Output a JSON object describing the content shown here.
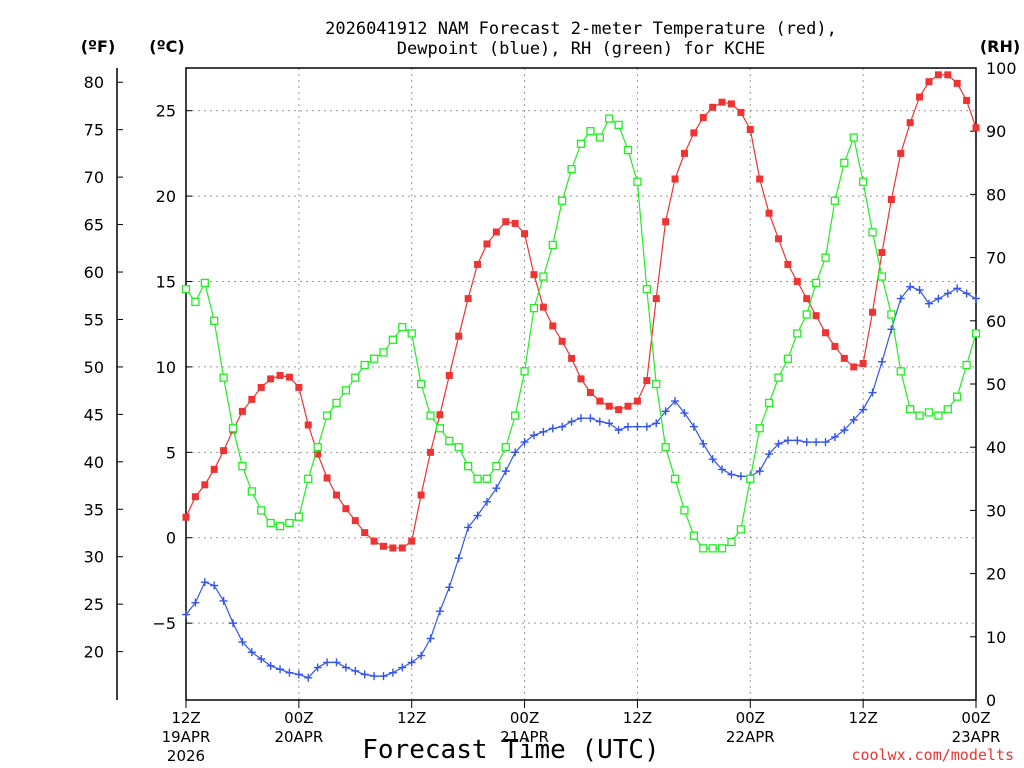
{
  "chart_data": {
    "type": "line",
    "title_line1": "2026041912 NAM Forecast 2-meter Temperature (red),",
    "title_line2": "Dewpoint (blue), RH (green) for KCHE",
    "xlabel": "Forecast Time (UTC)",
    "credit": "coolwx.com/modelts",
    "unit_f": "(ºF)",
    "unit_c": "(ºC)",
    "unit_rh": "(RH)",
    "x_range_hours": [
      0,
      84
    ],
    "c_range": [
      -9.5,
      27.5
    ],
    "f_ticks": [
      20,
      25,
      30,
      35,
      40,
      45,
      50,
      55,
      60,
      65,
      70,
      75,
      80
    ],
    "c_ticks": [
      -5,
      0,
      5,
      10,
      15,
      20,
      25
    ],
    "rh_range": [
      0,
      100
    ],
    "rh_ticks": [
      0,
      10,
      20,
      30,
      40,
      50,
      60,
      70,
      80,
      90,
      100
    ],
    "grid": true,
    "x_ticks": [
      {
        "hour": 0,
        "label1": "12Z",
        "label2": "19APR",
        "label3": "2026"
      },
      {
        "hour": 12,
        "label1": "00Z",
        "label2": "20APR",
        "label3": ""
      },
      {
        "hour": 24,
        "label1": "12Z",
        "label2": "",
        "label3": ""
      },
      {
        "hour": 36,
        "label1": "00Z",
        "label2": "21APR",
        "label3": ""
      },
      {
        "hour": 48,
        "label1": "12Z",
        "label2": "",
        "label3": ""
      },
      {
        "hour": 60,
        "label1": "00Z",
        "label2": "22APR",
        "label3": ""
      },
      {
        "hour": 72,
        "label1": "12Z",
        "label2": "",
        "label3": ""
      },
      {
        "hour": 84,
        "label1": "00Z",
        "label2": "23APR",
        "label3": ""
      }
    ],
    "series": [
      {
        "name": "Temperature (°C)",
        "color": "#ee3333",
        "axis": "c",
        "marker": "filled-square",
        "x": [
          0,
          1,
          2,
          3,
          4,
          5,
          6,
          7,
          8,
          9,
          10,
          11,
          12,
          13,
          14,
          15,
          16,
          17,
          18,
          19,
          20,
          21,
          22,
          23,
          24,
          25,
          26,
          27,
          28,
          29,
          30,
          31,
          32,
          33,
          34,
          35,
          36,
          37,
          38,
          39,
          40,
          41,
          42,
          43,
          44,
          45,
          46,
          47,
          48,
          49,
          50,
          51,
          52,
          53,
          54,
          55,
          56,
          57,
          58,
          59,
          60,
          61,
          62,
          63,
          64,
          65,
          66,
          67,
          68,
          69,
          70,
          71,
          72,
          73,
          74,
          75,
          76,
          77,
          78,
          79,
          80,
          81,
          82,
          83,
          84
        ],
        "values": [
          1.2,
          2.4,
          3.1,
          4.0,
          5.1,
          6.3,
          7.4,
          8.1,
          8.8,
          9.3,
          9.5,
          9.4,
          8.8,
          6.6,
          4.9,
          3.5,
          2.5,
          1.7,
          1.0,
          0.3,
          -0.2,
          -0.5,
          -0.6,
          -0.6,
          -0.2,
          2.5,
          5.0,
          7.2,
          9.5,
          11.8,
          14.0,
          16.0,
          17.2,
          17.9,
          18.5,
          18.4,
          17.8,
          15.4,
          13.5,
          12.4,
          11.5,
          10.5,
          9.3,
          8.5,
          8.0,
          7.7,
          7.5,
          7.7,
          8.0,
          9.2,
          14.0,
          18.5,
          21.0,
          22.5,
          23.7,
          24.6,
          25.2,
          25.5,
          25.4,
          24.9,
          23.9,
          21.0,
          19.0,
          17.5,
          16.0,
          15.0,
          14.0,
          13.0,
          12.0,
          11.2,
          10.5,
          10.0,
          10.2,
          13.2,
          16.7,
          19.8,
          22.5,
          24.3,
          25.8,
          26.7,
          27.1,
          27.1,
          26.6,
          25.6,
          24.0
        ]
      },
      {
        "name": "Dewpoint (°C)",
        "color": "#3355ee",
        "axis": "c",
        "marker": "plus",
        "x": [
          0,
          1,
          2,
          3,
          4,
          5,
          6,
          7,
          8,
          9,
          10,
          11,
          12,
          13,
          14,
          15,
          16,
          17,
          18,
          19,
          20,
          21,
          22,
          23,
          24,
          25,
          26,
          27,
          28,
          29,
          30,
          31,
          32,
          33,
          34,
          35,
          36,
          37,
          38,
          39,
          40,
          41,
          42,
          43,
          44,
          45,
          46,
          47,
          48,
          49,
          50,
          51,
          52,
          53,
          54,
          55,
          56,
          57,
          58,
          59,
          60,
          61,
          62,
          63,
          64,
          65,
          66,
          67,
          68,
          69,
          70,
          71,
          72,
          73,
          74,
          75,
          76,
          77,
          78,
          79,
          80,
          81,
          82,
          83,
          84
        ],
        "values": [
          -4.5,
          -3.8,
          -2.6,
          -2.8,
          -3.7,
          -5.0,
          -6.1,
          -6.7,
          -7.1,
          -7.5,
          -7.7,
          -7.9,
          -8.0,
          -8.2,
          -7.6,
          -7.3,
          -7.3,
          -7.6,
          -7.8,
          -8.0,
          -8.1,
          -8.1,
          -7.9,
          -7.6,
          -7.3,
          -6.9,
          -5.9,
          -4.3,
          -2.9,
          -1.2,
          0.6,
          1.3,
          2.1,
          2.9,
          3.9,
          5.0,
          5.6,
          6.0,
          6.2,
          6.4,
          6.5,
          6.8,
          7.0,
          7.0,
          6.8,
          6.7,
          6.3,
          6.5,
          6.5,
          6.5,
          6.7,
          7.4,
          8.0,
          7.3,
          6.5,
          5.5,
          4.6,
          4.0,
          3.7,
          3.6,
          3.6,
          3.9,
          4.9,
          5.5,
          5.7,
          5.7,
          5.6,
          5.6,
          5.6,
          5.9,
          6.3,
          6.9,
          7.5,
          8.5,
          10.3,
          12.2,
          14.0,
          14.7,
          14.5,
          13.7,
          14.0,
          14.3,
          14.6,
          14.3,
          14.0
        ]
      },
      {
        "name": "RH (%)",
        "color": "#22ee22",
        "axis": "rh",
        "marker": "open-square",
        "x": [
          0,
          1,
          2,
          3,
          4,
          5,
          6,
          7,
          8,
          9,
          10,
          11,
          12,
          13,
          14,
          15,
          16,
          17,
          18,
          19,
          20,
          21,
          22,
          23,
          24,
          25,
          26,
          27,
          28,
          29,
          30,
          31,
          32,
          33,
          34,
          35,
          36,
          37,
          38,
          39,
          40,
          41,
          42,
          43,
          44,
          45,
          46,
          47,
          48,
          49,
          50,
          51,
          52,
          53,
          54,
          55,
          56,
          57,
          58,
          59,
          60,
          61,
          62,
          63,
          64,
          65,
          66,
          67,
          68,
          69,
          70,
          71,
          72,
          73,
          74,
          75,
          76,
          77,
          78,
          79,
          80,
          81,
          82,
          83,
          84
        ],
        "values": [
          65,
          63,
          66,
          60,
          51,
          43,
          37,
          33,
          30,
          28,
          27.5,
          28,
          29,
          35,
          40,
          45,
          47,
          49,
          51,
          53,
          54,
          55,
          57,
          59,
          58,
          50,
          45,
          43,
          41,
          40,
          37,
          35,
          35,
          37,
          40,
          45,
          52,
          62,
          67,
          72,
          79,
          84,
          88,
          90,
          89,
          92,
          91,
          87,
          82,
          65,
          50,
          40,
          35,
          30,
          26,
          24,
          24,
          24,
          25,
          27,
          35,
          43,
          47,
          51,
          54,
          58,
          61,
          66,
          70,
          79,
          85,
          89,
          82,
          74,
          67,
          61,
          52,
          46,
          45,
          45.5,
          45,
          46,
          48,
          53,
          58
        ]
      }
    ]
  }
}
